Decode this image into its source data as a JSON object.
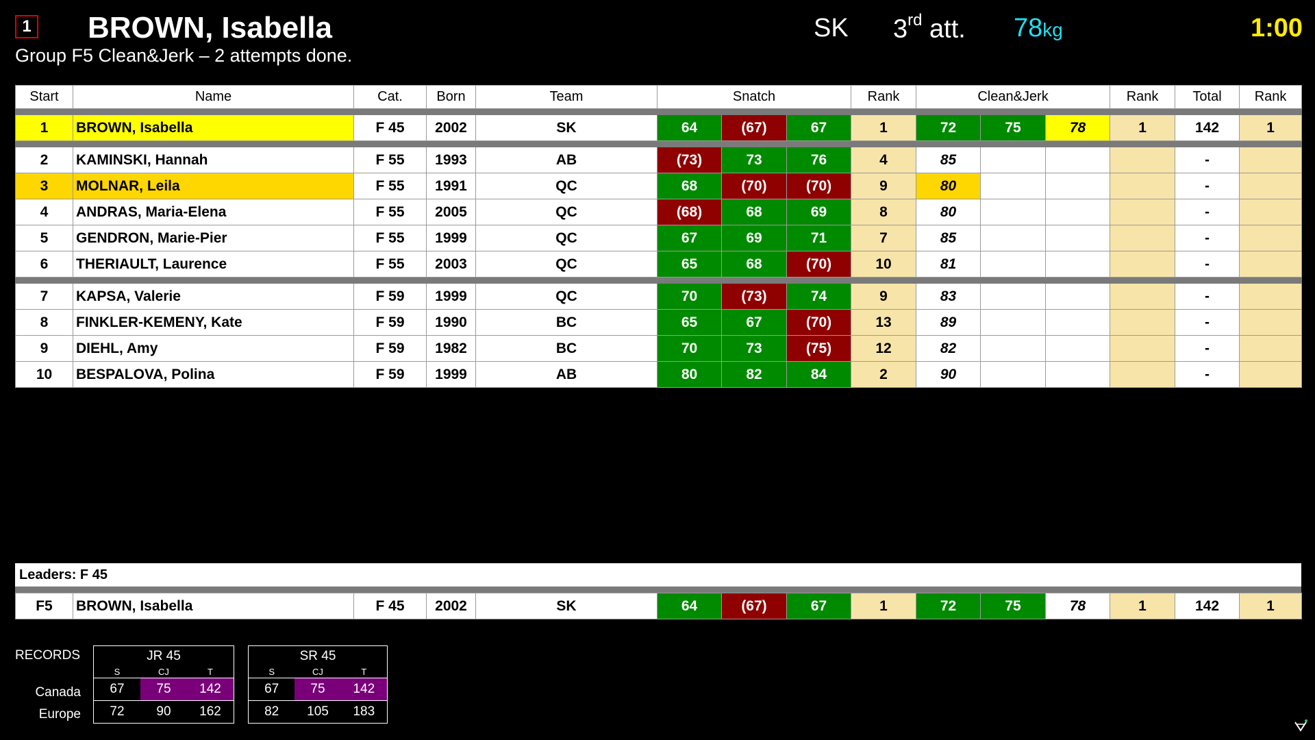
{
  "current": {
    "start_number": "1",
    "name": "BROWN, Isabella",
    "group_info": "Group F5 Clean&Jerk – 2 attempts done.",
    "team": "SK",
    "attempt_num": "3",
    "attempt_sup": "rd",
    "attempt_word": "att.",
    "weight": "78",
    "weight_unit": "kg",
    "clock": "1:00"
  },
  "columns": {
    "start": "Start",
    "name": "Name",
    "cat": "Cat.",
    "born": "Born",
    "team": "Team",
    "snatch": "Snatch",
    "rank1": "Rank",
    "cj": "Clean&Jerk",
    "rank2": "Rank",
    "total": "Total",
    "rank3": "Rank"
  },
  "rows": [
    {
      "start": "1",
      "name": "BROWN, Isabella",
      "cat": "F 45",
      "born": "2002",
      "team": "SK",
      "s1": "64",
      "s2": "(67)",
      "s3": "67",
      "srank": "1",
      "c1": "72",
      "c2": "75",
      "c3": "78",
      "crank": "1",
      "total": "142",
      "trank": "1"
    },
    {
      "start": "2",
      "name": "KAMINSKI, Hannah",
      "cat": "F 55",
      "born": "1993",
      "team": "AB",
      "s1": "(73)",
      "s2": "73",
      "s3": "76",
      "srank": "4",
      "c1": "85",
      "c2": "",
      "c3": "",
      "crank": "",
      "total": "-",
      "trank": ""
    },
    {
      "start": "3",
      "name": "MOLNAR, Leila",
      "cat": "F 55",
      "born": "1991",
      "team": "QC",
      "s1": "68",
      "s2": "(70)",
      "s3": "(70)",
      "srank": "9",
      "c1": "80",
      "c2": "",
      "c3": "",
      "crank": "",
      "total": "-",
      "trank": ""
    },
    {
      "start": "4",
      "name": "ANDRAS, Maria-Elena",
      "cat": "F 55",
      "born": "2005",
      "team": "QC",
      "s1": "(68)",
      "s2": "68",
      "s3": "69",
      "srank": "8",
      "c1": "80",
      "c2": "",
      "c3": "",
      "crank": "",
      "total": "-",
      "trank": ""
    },
    {
      "start": "5",
      "name": "GENDRON, Marie-Pier",
      "cat": "F 55",
      "born": "1999",
      "team": "QC",
      "s1": "67",
      "s2": "69",
      "s3": "71",
      "srank": "7",
      "c1": "85",
      "c2": "",
      "c3": "",
      "crank": "",
      "total": "-",
      "trank": ""
    },
    {
      "start": "6",
      "name": "THERIAULT, Laurence",
      "cat": "F 55",
      "born": "2003",
      "team": "QC",
      "s1": "65",
      "s2": "68",
      "s3": "(70)",
      "srank": "10",
      "c1": "81",
      "c2": "",
      "c3": "",
      "crank": "",
      "total": "-",
      "trank": ""
    },
    {
      "start": "7",
      "name": "KAPSA, Valerie",
      "cat": "F 59",
      "born": "1999",
      "team": "QC",
      "s1": "70",
      "s2": "(73)",
      "s3": "74",
      "srank": "9",
      "c1": "83",
      "c2": "",
      "c3": "",
      "crank": "",
      "total": "-",
      "trank": ""
    },
    {
      "start": "8",
      "name": "FINKLER-KEMENY, Kate",
      "cat": "F 59",
      "born": "1990",
      "team": "BC",
      "s1": "65",
      "s2": "67",
      "s3": "(70)",
      "srank": "13",
      "c1": "89",
      "c2": "",
      "c3": "",
      "crank": "",
      "total": "-",
      "trank": ""
    },
    {
      "start": "9",
      "name": "DIEHL, Amy",
      "cat": "F 59",
      "born": "1982",
      "team": "BC",
      "s1": "70",
      "s2": "73",
      "s3": "(75)",
      "srank": "12",
      "c1": "82",
      "c2": "",
      "c3": "",
      "crank": "",
      "total": "-",
      "trank": ""
    },
    {
      "start": "10",
      "name": "BESPALOVA, Polina",
      "cat": "F 59",
      "born": "1999",
      "team": "AB",
      "s1": "80",
      "s2": "82",
      "s3": "84",
      "srank": "2",
      "c1": "90",
      "c2": "",
      "c3": "",
      "crank": "",
      "total": "-",
      "trank": ""
    }
  ],
  "leaders": {
    "title": "Leaders: F 45",
    "row": {
      "start": "F5",
      "name": "BROWN, Isabella",
      "cat": "F 45",
      "born": "2002",
      "team": "SK",
      "s1": "64",
      "s2": "(67)",
      "s3": "67",
      "srank": "1",
      "c1": "72",
      "c2": "75",
      "c3": "78",
      "crank": "1",
      "total": "142",
      "trank": "1"
    }
  },
  "records": {
    "label": "RECORDS",
    "row_labels": [
      "Canada",
      "Europe"
    ],
    "sub_labels": [
      "S",
      "CJ",
      "T"
    ],
    "boxes": [
      {
        "title": "JR 45",
        "rows": [
          [
            "67",
            "75",
            "142"
          ],
          [
            "72",
            "90",
            "162"
          ]
        ]
      },
      {
        "title": "SR 45",
        "rows": [
          [
            "67",
            "75",
            "142"
          ],
          [
            "82",
            "105",
            "183"
          ]
        ]
      }
    ]
  },
  "colors": {
    "good": "#008a00",
    "bad": "#8f0000",
    "rank": "#f7e4a8",
    "current": "#ffff00",
    "next": "#ffd700",
    "record": "#7a007a",
    "weight": "#1ee0f0",
    "clock": "#ffeb00"
  }
}
